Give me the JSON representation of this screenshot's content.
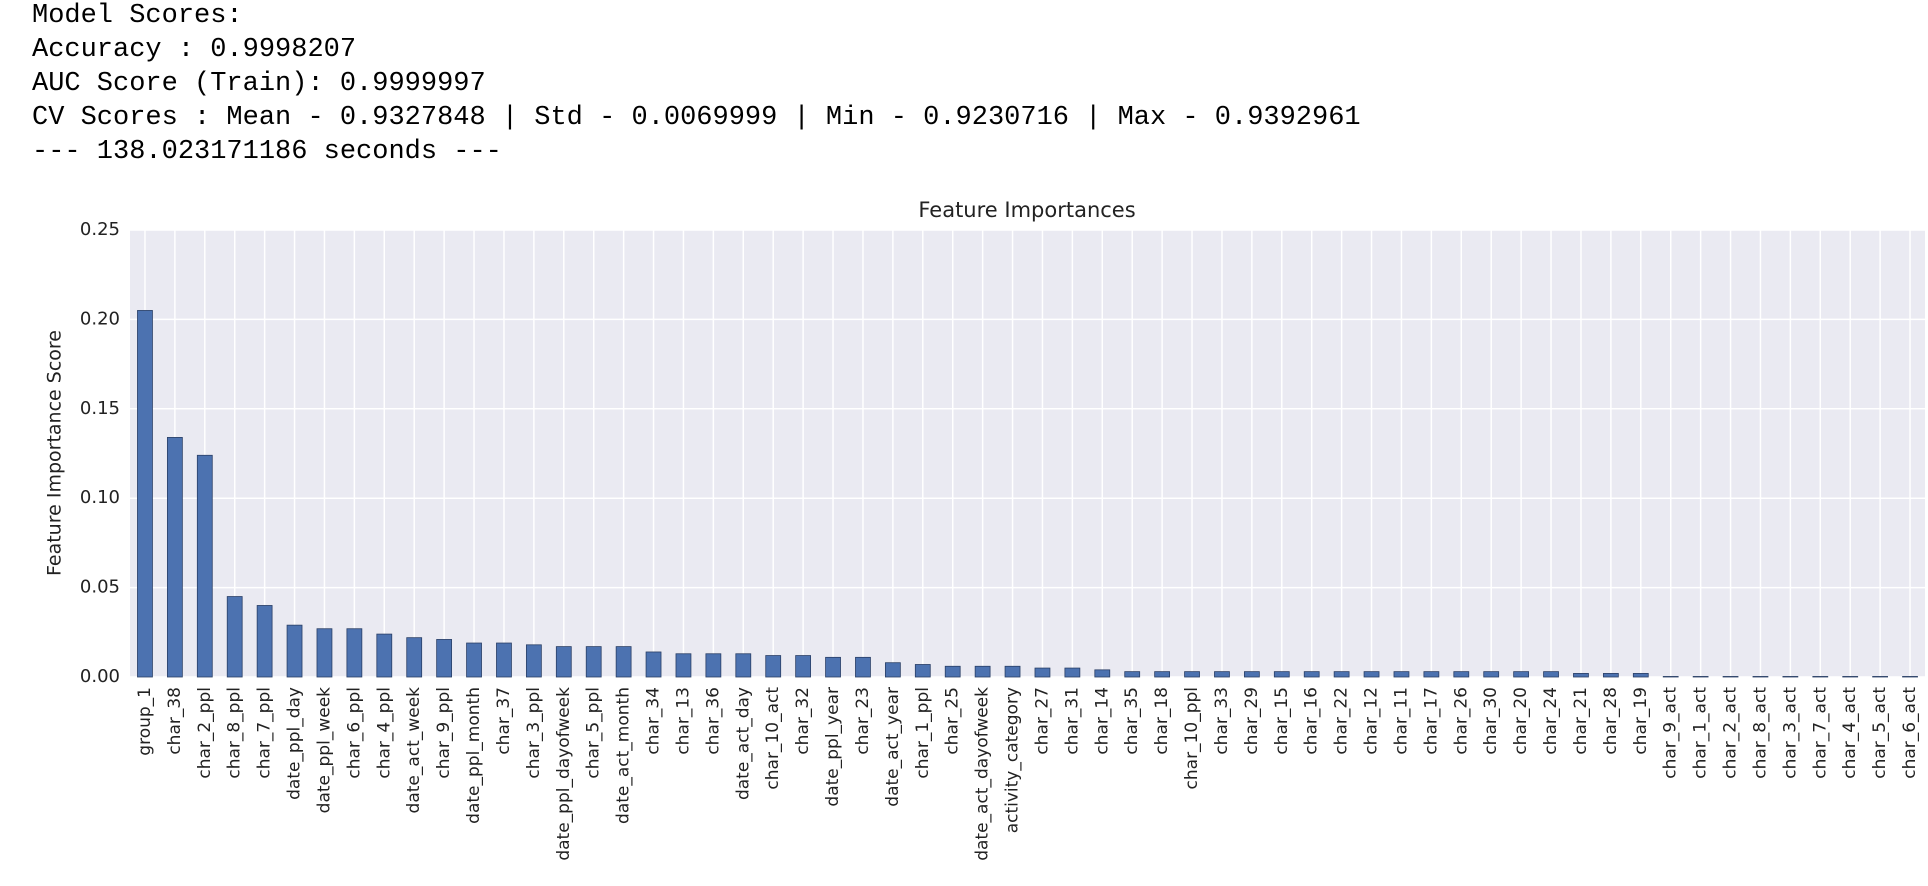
{
  "text_lines": [
    "Model Scores:",
    "Accuracy : 0.9998207",
    "AUC Score (Train): 0.9999997",
    "CV Scores : Mean - 0.9327848 | Std - 0.0069999 | Min - 0.9230716 | Max - 0.9392961",
    "--- 138.023171186 seconds ---"
  ],
  "chart_data": {
    "type": "bar",
    "title": "Feature Importances",
    "y_label": "Feature Importance Score",
    "categories": [
      "group_1",
      "char_38",
      "char_2_ppl",
      "char_8_ppl",
      "char_7_ppl",
      "date_ppl_day",
      "date_ppl_week",
      "char_6_ppl",
      "char_4_ppl",
      "date_act_week",
      "char_9_ppl",
      "date_ppl_month",
      "char_37",
      "char_3_ppl",
      "date_ppl_dayofweek",
      "char_5_ppl",
      "date_act_month",
      "char_34",
      "char_13",
      "char_36",
      "date_act_day",
      "char_10_act",
      "char_32",
      "date_ppl_year",
      "char_23",
      "date_act_year",
      "char_1_ppl",
      "char_25",
      "date_act_dayofweek",
      "activity_category",
      "char_27",
      "char_31",
      "char_14",
      "char_35",
      "char_18",
      "char_10_ppl",
      "char_33",
      "char_29",
      "char_15",
      "char_16",
      "char_22",
      "char_12",
      "char_11",
      "char_17",
      "char_26",
      "char_30",
      "char_20",
      "char_24",
      "char_21",
      "char_28",
      "char_19",
      "char_9_act",
      "char_1_act",
      "char_2_act",
      "char_8_act",
      "char_3_act",
      "char_7_act",
      "char_4_act",
      "char_5_act",
      "char_6_act"
    ],
    "values": [
      0.205,
      0.134,
      0.124,
      0.045,
      0.04,
      0.029,
      0.027,
      0.027,
      0.024,
      0.022,
      0.021,
      0.019,
      0.019,
      0.018,
      0.017,
      0.017,
      0.017,
      0.014,
      0.013,
      0.013,
      0.013,
      0.012,
      0.012,
      0.011,
      0.011,
      0.008,
      0.007,
      0.006,
      0.006,
      0.006,
      0.005,
      0.005,
      0.004,
      0.003,
      0.003,
      0.003,
      0.003,
      0.003,
      0.003,
      0.003,
      0.003,
      0.003,
      0.003,
      0.003,
      0.003,
      0.003,
      0.003,
      0.003,
      0.002,
      0.002,
      0.002,
      0.0003,
      0.0003,
      0.0003,
      0.0003,
      0.0003,
      0.0003,
      0.0003,
      0.0003,
      0.0003
    ],
    "color": "#4c72b0",
    "ylim": [
      0,
      0.25
    ],
    "yticks": [
      {
        "value": 0,
        "label": "0.00"
      },
      {
        "value": 0.05,
        "label": "0.05"
      },
      {
        "value": 0.1,
        "label": "0.10"
      },
      {
        "value": 0.15,
        "label": "0.15"
      },
      {
        "value": 0.2,
        "label": "0.20"
      },
      {
        "value": 0.25,
        "label": "0.25"
      }
    ],
    "grid": true
  }
}
